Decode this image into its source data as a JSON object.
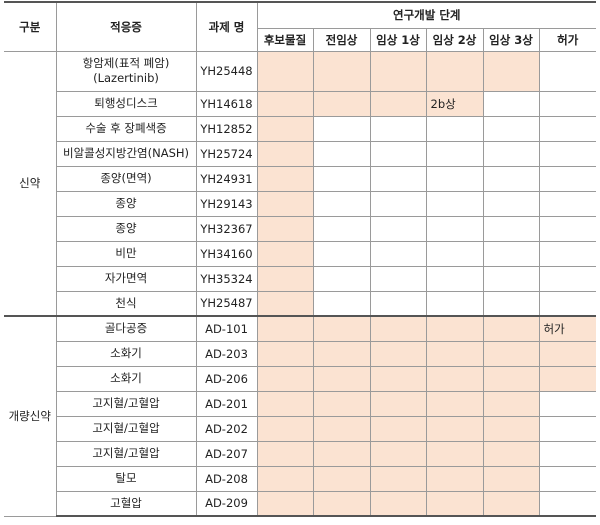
{
  "headers": {
    "category": "구분",
    "indication": "적응증",
    "project": "과제 명",
    "stage_group": "연구개발 단계",
    "stages": [
      "후보물질",
      "전임상",
      "임상 1상",
      "임상 2상",
      "임상 3상",
      "허가"
    ]
  },
  "groups": [
    {
      "name": "신약",
      "rows": [
        {
          "indication": "항암제(표적 폐암)\n(Lazertinib)",
          "project": "YH25448",
          "fill": 5,
          "label": ""
        },
        {
          "indication": "퇴행성디스크",
          "project": "YH14618",
          "fill": 4,
          "label": "2b상"
        },
        {
          "indication": "수술 후 장폐색증",
          "project": "YH12852",
          "fill": 1,
          "label": ""
        },
        {
          "indication": "비알콜성지방간염(NASH)",
          "project": "YH25724",
          "fill": 1,
          "label": ""
        },
        {
          "indication": "종양(면역)",
          "project": "YH24931",
          "fill": 1,
          "label": ""
        },
        {
          "indication": "종양",
          "project": "YH29143",
          "fill": 1,
          "label": ""
        },
        {
          "indication": "종양",
          "project": "YH32367",
          "fill": 1,
          "label": ""
        },
        {
          "indication": "비만",
          "project": "YH34160",
          "fill": 1,
          "label": ""
        },
        {
          "indication": "자가면역",
          "project": "YH35324",
          "fill": 1,
          "label": ""
        },
        {
          "indication": "천식",
          "project": "YH25487",
          "fill": 1,
          "label": ""
        }
      ]
    },
    {
      "name": "개량신약",
      "rows": [
        {
          "indication": "골다공증",
          "project": "AD-101",
          "fill": 6,
          "label": "허가"
        },
        {
          "indication": "소화기",
          "project": "AD-203",
          "fill": 6,
          "label": ""
        },
        {
          "indication": "소화기",
          "project": "AD-206",
          "fill": 6,
          "label": ""
        },
        {
          "indication": "고지혈/고혈압",
          "project": "AD-201",
          "fill": 5,
          "label": ""
        },
        {
          "indication": "고지혈/고혈압",
          "project": "AD-202",
          "fill": 5,
          "label": ""
        },
        {
          "indication": "고지혈/고혈압",
          "project": "AD-207",
          "fill": 5,
          "label": ""
        },
        {
          "indication": "탈모",
          "project": "AD-208",
          "fill": 5,
          "label": ""
        },
        {
          "indication": "고혈압",
          "project": "AD-209",
          "fill": 5,
          "label": ""
        }
      ]
    }
  ],
  "colors": {
    "stage_fill": "#fbe3d2",
    "border": "#9a9a9a",
    "rule": "#555555"
  }
}
